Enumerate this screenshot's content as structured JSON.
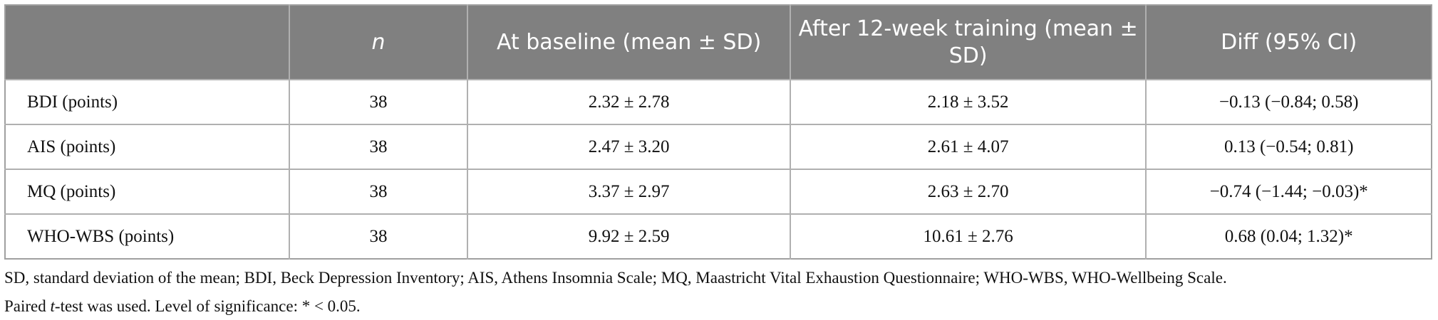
{
  "table": {
    "header": [
      "",
      "n",
      "At baseline (mean ± SD)",
      "After 12-week training (mean ± SD)",
      "Diff (95% CI)"
    ],
    "rows": [
      [
        "BDI (points)",
        "38",
        "2.32 ± 2.78",
        "2.18 ± 3.52",
        "−0.13 (−0.84; 0.58)"
      ],
      [
        "AIS (points)",
        "38",
        "2.47 ± 3.20",
        "2.61 ± 4.07",
        "0.13 (−0.54; 0.81)"
      ],
      [
        "MQ (points)",
        "38",
        "3.37 ± 2.97",
        "2.63 ± 2.70",
        "−0.74 (−1.44; −0.03)*"
      ],
      [
        "WHO-WBS (points)",
        "38",
        "9.92 ± 2.59",
        "10.61 ± 2.76",
        "0.68 (0.04; 1.32)*"
      ]
    ]
  },
  "footnotes": [
    "SD, standard deviation of the mean; BDI, Beck Depression Inventory; AIS, Athens Insomnia Scale; MQ, Maastricht Vital Exhaustion Questionnaire; WHO-WBS, WHO-Wellbeing Scale.",
    [
      "Paired ",
      "t",
      "-test was used. Level of significance: * < 0.05."
    ]
  ]
}
